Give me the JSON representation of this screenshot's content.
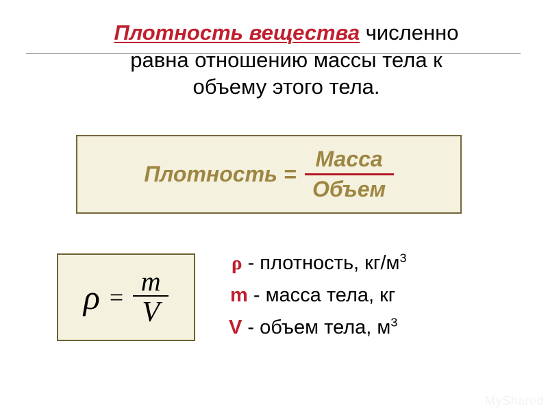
{
  "colors": {
    "term": "#c01f2e",
    "word_formula": "#9e8642",
    "box1_border": "#75673c",
    "box1_bg": "#f4f2df",
    "fracline": "#b51425",
    "box2_border": "#6d6032",
    "box2_bg": "#f4f2df",
    "legend_sym": "#c01f2e"
  },
  "title": {
    "term": "Плотность вещества",
    "rest": " численно равна отношению массы тела к объему этого тела."
  },
  "word_formula": {
    "lhs": "Плотность =",
    "num": "Масса",
    "den": "Объем"
  },
  "math_formula": {
    "rho": "ρ",
    "eq": "=",
    "num": "m",
    "den": "V"
  },
  "legend": {
    "l1": {
      "sym": "ρ",
      "txt": " - плотность, кг/м",
      "sup": "3"
    },
    "l2": {
      "sym": "m",
      "txt": " - масса тела, кг"
    },
    "l3": {
      "sym": "V",
      "txt": " - объем тела, м",
      "sup": "3"
    }
  },
  "watermark": "MyShared"
}
